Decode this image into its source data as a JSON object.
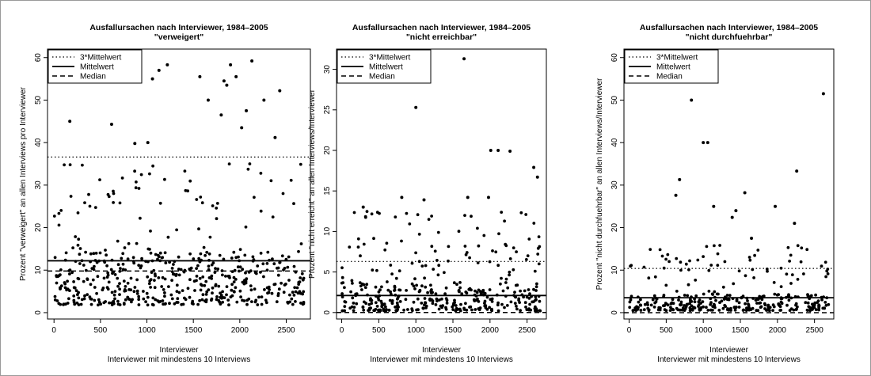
{
  "window": {
    "border_color": "#999999"
  },
  "colors": {
    "points": "#000000",
    "lines": "#000000",
    "background": "#ffffff"
  },
  "chart_data": [
    {
      "type": "scatter",
      "title": "Ausfallursachen nach Interviewer, 1984–2005",
      "subtitle": "\"verweigert\"",
      "xlabel": "Interviewer",
      "xsublabel": "Interviewer mit mindestens 10 Interviews",
      "ylabel": "Prozent \"verweigert\" an allen Interviews pro Interviewer",
      "xlim": [
        -70,
        2760
      ],
      "ylim": [
        -1.5,
        62
      ],
      "xticks": [
        0,
        500,
        1000,
        1500,
        2000,
        2500
      ],
      "yticks": [
        0,
        10,
        20,
        30,
        40,
        50,
        60
      ],
      "legend": {
        "position": "top-left",
        "entries": [
          "3*Mittelwert",
          "Mittelwert",
          "Median"
        ]
      },
      "reference_lines": {
        "three_times_mean": 36.6,
        "mean": 12.2,
        "median": 9.8
      },
      "notable_points": [
        {
          "x": 170,
          "y": 45
        },
        {
          "x": 620,
          "y": 44.3
        },
        {
          "x": 1010,
          "y": 40
        },
        {
          "x": 1060,
          "y": 55
        },
        {
          "x": 1130,
          "y": 57
        },
        {
          "x": 1220,
          "y": 58.3
        },
        {
          "x": 1570,
          "y": 55.5
        },
        {
          "x": 1660,
          "y": 50
        },
        {
          "x": 1800,
          "y": 46.5
        },
        {
          "x": 1830,
          "y": 54.5
        },
        {
          "x": 1860,
          "y": 53.5
        },
        {
          "x": 1900,
          "y": 58.3
        },
        {
          "x": 1960,
          "y": 55.5
        },
        {
          "x": 2020,
          "y": 43.5
        },
        {
          "x": 2070,
          "y": 47.5
        },
        {
          "x": 2130,
          "y": 59.2
        },
        {
          "x": 2260,
          "y": 50
        },
        {
          "x": 2430,
          "y": 52.2
        },
        {
          "x": 2380,
          "y": 41.2
        },
        {
          "x": 870,
          "y": 39.8
        }
      ],
      "bulk": {
        "n": 540,
        "ymin": 1.8,
        "ymax": 35,
        "typical": 9.5
      }
    },
    {
      "type": "scatter",
      "title": "Ausfallursachen nach Interviewer, 1984–2005",
      "subtitle": "\"nicht erreichbar\"",
      "xlabel": "Interviewer",
      "xsublabel": "Interviewer mit mindestens 10 Interviews",
      "ylabel": "Prozent \"nicht erreicht\" an allen Interviews/Interviewer",
      "xlim": [
        -70,
        2760
      ],
      "ylim": [
        -0.8,
        32.5
      ],
      "xticks": [
        0,
        500,
        1000,
        1500,
        2000,
        2500
      ],
      "yticks": [
        0,
        5,
        10,
        15,
        20,
        25,
        30
      ],
      "legend": {
        "position": "top-left",
        "entries": [
          "3*Mittelwert",
          "Mittelwert",
          "Median"
        ]
      },
      "reference_lines": {
        "three_times_mean": 6.3,
        "mean": 2.1,
        "median": 0
      },
      "notable_points": [
        {
          "x": 1650,
          "y": 31.3
        },
        {
          "x": 1000,
          "y": 25.3
        },
        {
          "x": 2010,
          "y": 20
        },
        {
          "x": 2110,
          "y": 20
        },
        {
          "x": 2270,
          "y": 19.9
        },
        {
          "x": 2590,
          "y": 17.9
        },
        {
          "x": 2640,
          "y": 16.7
        },
        {
          "x": 1700,
          "y": 14.2
        },
        {
          "x": 1980,
          "y": 14.2
        },
        {
          "x": 1110,
          "y": 13.9
        },
        {
          "x": 810,
          "y": 14.2
        },
        {
          "x": 290,
          "y": 13
        }
      ],
      "bulk": {
        "n": 380,
        "ymin": 0.2,
        "ymax": 12.5,
        "typical": 2.5
      }
    },
    {
      "type": "scatter",
      "title": "Ausfallursachen nach Interviewer, 1984–2005",
      "subtitle": "\"nicht durchfuehrbar\"",
      "xlabel": "Interviewer",
      "xsublabel": "Interviewer mit mindestens 10 Interviews",
      "ylabel": "Prozent \"nicht durchfuehrbar\" an allen Interviews/Interviewer",
      "xlim": [
        -70,
        2760
      ],
      "ylim": [
        -1.5,
        62
      ],
      "xticks": [
        0,
        500,
        1000,
        1500,
        2000,
        2500
      ],
      "yticks": [
        0,
        10,
        20,
        30,
        40,
        50,
        60
      ],
      "legend": {
        "position": "top-left",
        "entries": [
          "3*Mittelwert",
          "Mittelwert",
          "Median"
        ]
      },
      "reference_lines": {
        "three_times_mean": 10.4,
        "mean": 3.5,
        "median": 0
      },
      "notable_points": [
        {
          "x": 290,
          "y": 55.5
        },
        {
          "x": 840,
          "y": 50
        },
        {
          "x": 2620,
          "y": 51.5
        },
        {
          "x": 1000,
          "y": 40
        },
        {
          "x": 1060,
          "y": 40
        },
        {
          "x": 2260,
          "y": 33.3
        },
        {
          "x": 680,
          "y": 31.3
        },
        {
          "x": 1560,
          "y": 28.2
        },
        {
          "x": 630,
          "y": 27.6
        },
        {
          "x": 1970,
          "y": 25
        },
        {
          "x": 1440,
          "y": 24
        },
        {
          "x": 1140,
          "y": 25
        },
        {
          "x": 1390,
          "y": 22.4
        },
        {
          "x": 2230,
          "y": 21
        },
        {
          "x": 1650,
          "y": 17.5
        }
      ],
      "bulk": {
        "n": 340,
        "ymin": 0.5,
        "ymax": 16,
        "typical": 3
      }
    }
  ]
}
